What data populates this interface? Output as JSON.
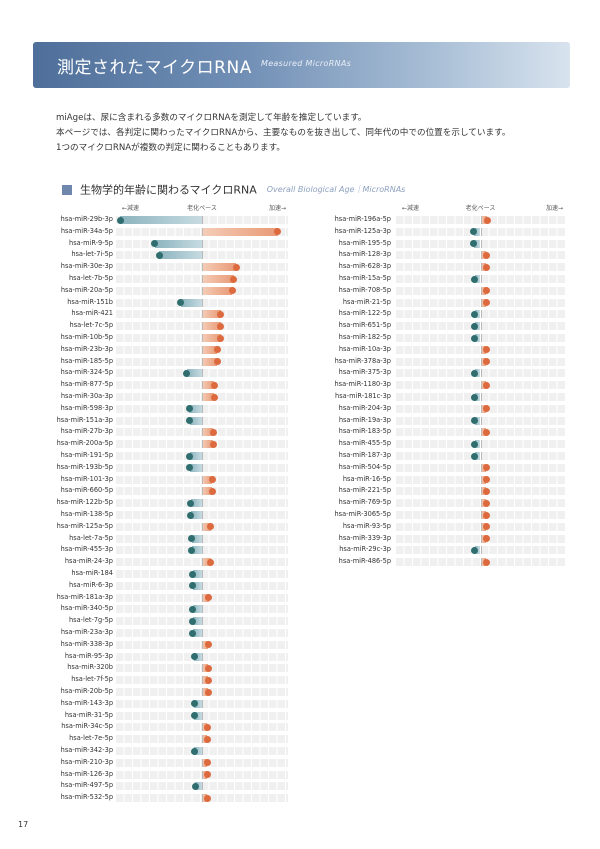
{
  "header": {
    "title": "測定されたマイクロRNA",
    "subtitle": "Measured MicroRNAs"
  },
  "intro": {
    "lines": [
      "miAgeは、尿に含まれる多数のマイクロRNAを測定して年齢を推定しています。",
      "本ページでは、各判定に関わったマイクロRNAから、主要なものを抜き出して、同年代の中での位置を示しています。",
      "1つのマイクロRNAが複数の判定に関わることもあります。"
    ]
  },
  "section": {
    "title": "生物学的年齢に関わるマイクロRNA",
    "subtitle": "Overall Biological Age｜MicroRNAs"
  },
  "axis": {
    "left_label": "←減速",
    "center_label": "老化ペース",
    "right_label": "加速→"
  },
  "colors": {
    "decelerate": "#2f6d6e",
    "accelerate": "#dc6a3e"
  },
  "chart_data": [
    {
      "type": "dot-bar",
      "scale": [
        -1,
        1
      ],
      "rows": [
        {
          "name": "hsa-miR-29b-3p",
          "value": -0.95
        },
        {
          "name": "hsa-miR-34a-5p",
          "value": 0.88
        },
        {
          "name": "hsa-miR-9-5p",
          "value": -0.55
        },
        {
          "name": "hsa-let-7i-5p",
          "value": -0.5
        },
        {
          "name": "hsa-miR-30e-3p",
          "value": 0.4
        },
        {
          "name": "hsa-let-7b-5p",
          "value": 0.37
        },
        {
          "name": "hsa-miR-20a-5p",
          "value": 0.35
        },
        {
          "name": "hsa-miR-151b",
          "value": -0.25
        },
        {
          "name": "hsa-miR-421",
          "value": 0.22
        },
        {
          "name": "hsa-let-7c-5p",
          "value": 0.22
        },
        {
          "name": "hsa-miR-10b-5p",
          "value": 0.22
        },
        {
          "name": "hsa-miR-23b-3p",
          "value": 0.18
        },
        {
          "name": "hsa-miR-185-5p",
          "value": 0.18
        },
        {
          "name": "hsa-miR-324-5p",
          "value": -0.18
        },
        {
          "name": "hsa-miR-877-5p",
          "value": 0.14
        },
        {
          "name": "hsa-miR-30a-3p",
          "value": 0.14
        },
        {
          "name": "hsa-miR-598-3p",
          "value": -0.15
        },
        {
          "name": "hsa-miR-151a-3p",
          "value": -0.14
        },
        {
          "name": "hsa-miR-27b-3p",
          "value": 0.13
        },
        {
          "name": "hsa-miR-200a-5p",
          "value": 0.13
        },
        {
          "name": "hsa-miR-191-5p",
          "value": -0.14
        },
        {
          "name": "hsa-miR-193b-5p",
          "value": -0.14
        },
        {
          "name": "hsa-miR-101-3p",
          "value": 0.12
        },
        {
          "name": "hsa-miR-660-5p",
          "value": 0.12
        },
        {
          "name": "hsa-miR-122b-5p",
          "value": -0.13
        },
        {
          "name": "hsa-miR-138-5p",
          "value": -0.13
        },
        {
          "name": "hsa-miR-125a-5p",
          "value": 0.1
        },
        {
          "name": "hsa-let-7a-5p",
          "value": -0.12
        },
        {
          "name": "hsa-miR-455-3p",
          "value": -0.12
        },
        {
          "name": "hsa-miR-24-3p",
          "value": 0.1
        },
        {
          "name": "hsa-miR-184",
          "value": -0.11
        },
        {
          "name": "hsa-miR-6-3p",
          "value": -0.11
        },
        {
          "name": "hsa-miR-181a-3p",
          "value": 0.08
        },
        {
          "name": "hsa-miR-340-5p",
          "value": -0.11
        },
        {
          "name": "hsa-let-7g-5p",
          "value": -0.11
        },
        {
          "name": "hsa-miR-23a-3p",
          "value": -0.11
        },
        {
          "name": "hsa-miR-338-3p",
          "value": 0.07
        },
        {
          "name": "hsa-miR-95-3p",
          "value": -0.09
        },
        {
          "name": "hsa-miR-320b",
          "value": 0.07
        },
        {
          "name": "hsa-let-7f-5p",
          "value": 0.07
        },
        {
          "name": "hsa-miR-20b-5p",
          "value": 0.07
        },
        {
          "name": "hsa-miR-143-3p",
          "value": -0.09
        },
        {
          "name": "hsa-miR-31-5p",
          "value": -0.09
        },
        {
          "name": "hsa-miR-34c-5p",
          "value": 0.06
        },
        {
          "name": "hsa-let-7e-5p",
          "value": 0.06
        },
        {
          "name": "hsa-miR-342-3p",
          "value": -0.09
        },
        {
          "name": "hsa-miR-210-3p",
          "value": 0.06
        },
        {
          "name": "hsa-miR-126-3p",
          "value": 0.06
        },
        {
          "name": "hsa-miR-497-5p",
          "value": -0.08
        },
        {
          "name": "hsa-miR-532-5p",
          "value": 0.06
        }
      ]
    },
    {
      "type": "dot-bar",
      "scale": [
        -1,
        1
      ],
      "rows": [
        {
          "name": "hsa-miR-196a-5p",
          "value": 0.08
        },
        {
          "name": "hsa-miR-125a-3p",
          "value": -0.08
        },
        {
          "name": "hsa-miR-195-5p",
          "value": -0.08
        },
        {
          "name": "hsa-miR-128-3p",
          "value": 0.07
        },
        {
          "name": "hsa-miR-628-3p",
          "value": 0.07
        },
        {
          "name": "hsa-miR-15a-5p",
          "value": -0.07
        },
        {
          "name": "hsa-miR-708-5p",
          "value": 0.07
        },
        {
          "name": "hsa-miR-21-5p",
          "value": 0.07
        },
        {
          "name": "hsa-miR-122-5p",
          "value": -0.07
        },
        {
          "name": "hsa-miR-651-5p",
          "value": -0.07
        },
        {
          "name": "hsa-miR-182-5p",
          "value": -0.07
        },
        {
          "name": "hsa-miR-10a-3p",
          "value": 0.07
        },
        {
          "name": "hsa-miR-378a-3p",
          "value": 0.07
        },
        {
          "name": "hsa-miR-375-3p",
          "value": -0.07
        },
        {
          "name": "hsa-miR-1180-3p",
          "value": 0.07
        },
        {
          "name": "hsa-miR-181c-3p",
          "value": -0.07
        },
        {
          "name": "hsa-miR-204-3p",
          "value": 0.07
        },
        {
          "name": "hsa-miR-19a-3p",
          "value": -0.07
        },
        {
          "name": "hsa-miR-183-5p",
          "value": 0.07
        },
        {
          "name": "hsa-miR-455-5p",
          "value": -0.07
        },
        {
          "name": "hsa-miR-187-3p",
          "value": -0.07
        },
        {
          "name": "hsa-miR-504-5p",
          "value": 0.07
        },
        {
          "name": "hsa-miR-16-5p",
          "value": 0.07
        },
        {
          "name": "hsa-miR-221-5p",
          "value": 0.07
        },
        {
          "name": "hsa-miR-769-5p",
          "value": 0.07
        },
        {
          "name": "hsa-miR-3065-5p",
          "value": 0.07
        },
        {
          "name": "hsa-miR-93-5p",
          "value": 0.07
        },
        {
          "name": "hsa-miR-339-3p",
          "value": 0.07
        },
        {
          "name": "hsa-miR-29c-3p",
          "value": -0.07
        },
        {
          "name": "hsa-miR-486-5p",
          "value": 0.07
        }
      ]
    }
  ],
  "page_number": "17"
}
